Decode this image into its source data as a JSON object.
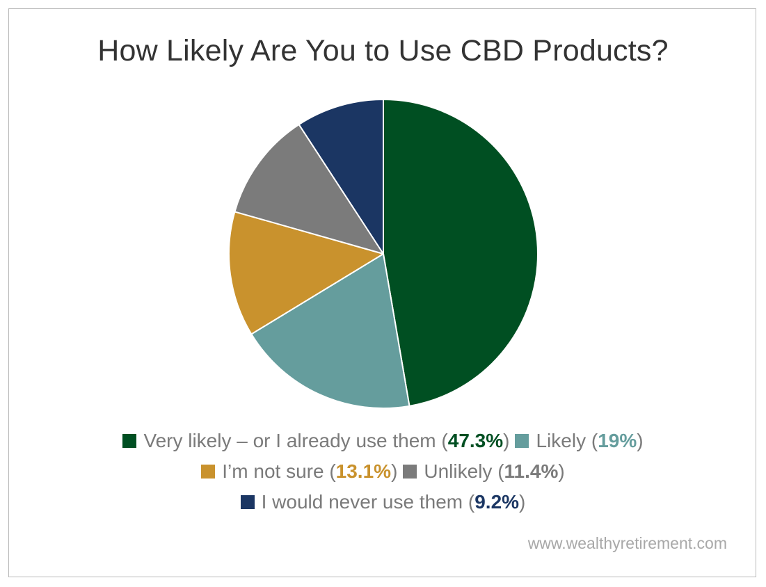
{
  "chart_data": {
    "type": "pie",
    "title": "How Likely Are You to Use CBD Products?",
    "slices": [
      {
        "label": "Very likely – or I already use them",
        "value": 47.3,
        "display": "47.3%",
        "color": "#004F22"
      },
      {
        "label": "Likely",
        "value": 19,
        "display": "19%",
        "color": "#659D9D"
      },
      {
        "label": "I’m not sure",
        "value": 13.1,
        "display": "13.1%",
        "color": "#C9922D"
      },
      {
        "label": "Unlikely",
        "value": 11.4,
        "display": "11.4%",
        "color": "#7B7B7B"
      },
      {
        "label": "I would never use them",
        "value": 9.2,
        "display": "9.2%",
        "color": "#1B3663"
      }
    ],
    "start_angle_deg": 0,
    "direction": "clockwise",
    "legend_position": "bottom"
  },
  "source": "www.wealthyretirement.com"
}
